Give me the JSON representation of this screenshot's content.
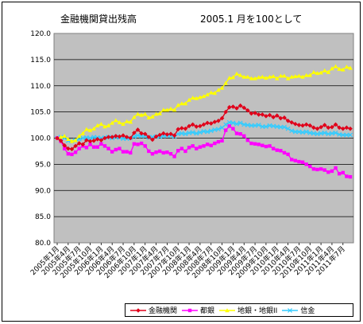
{
  "chart_data": {
    "type": "line",
    "title": "金融機関貸出残高",
    "subtitle": "2005.1 月を100として",
    "ylim": [
      80,
      120
    ],
    "yticks": [
      "80.0",
      "85.0",
      "90.0",
      "95.0",
      "100.0",
      "105.0",
      "110.0",
      "115.0",
      "120.0"
    ],
    "grid": true,
    "legend_position": "bottom",
    "x_tick_labels": [
      "2005年1月",
      "2005年4月",
      "2005年7月",
      "2005年10月",
      "2006年1月",
      "2006年4月",
      "2006年7月",
      "2006年10月",
      "2007年1月",
      "2007年4月",
      "2007年7月",
      "2007年10月",
      "2008年1月",
      "2008年4月",
      "2008年7月",
      "2008年10月",
      "2009年1月",
      "2009年4月",
      "2009年7月",
      "2009年10月",
      "2010年1月",
      "2010年4月",
      "2010年7月",
      "2010年10月",
      "2011年1月",
      "2011年4月",
      "2011年7月"
    ],
    "series": [
      {
        "name": "金融機関",
        "color": "#e0001a",
        "marker": "diamond",
        "values": [
          100.0,
          99.5,
          98.6,
          98.0,
          97.9,
          98.5,
          99.0,
          98.8,
          99.6,
          99.4,
          99.5,
          99.8,
          99.6,
          100.0,
          100.2,
          100.2,
          100.4,
          100.3,
          100.5,
          100.2,
          100.0,
          101.0,
          101.6,
          100.9,
          100.8,
          100.2,
          99.7,
          100.3,
          100.6,
          100.9,
          100.7,
          100.8,
          100.5,
          101.7,
          101.9,
          101.8,
          102.3,
          102.6,
          102.2,
          102.3,
          102.6,
          102.9,
          102.8,
          103.1,
          103.3,
          103.8,
          105.0,
          105.9,
          106.0,
          105.7,
          106.2,
          105.8,
          105.3,
          104.7,
          104.8,
          104.5,
          104.5,
          104.2,
          104.4,
          104.0,
          104.3,
          103.8,
          103.9,
          103.3,
          103.0,
          102.7,
          102.5,
          102.4,
          102.6,
          102.4,
          102.0,
          101.8,
          102.1,
          102.5,
          102.0,
          102.1,
          102.6,
          102.0,
          101.8,
          102.0,
          101.8
        ]
      },
      {
        "name": "都銀",
        "color": "#ff00ff",
        "marker": "square",
        "values": [
          100.0,
          99.4,
          98.0,
          97.0,
          96.9,
          97.3,
          98.0,
          98.5,
          98.2,
          98.8,
          98.3,
          98.3,
          98.9,
          98.5,
          98.0,
          97.4,
          97.8,
          98.0,
          97.4,
          97.4,
          97.2,
          98.9,
          98.8,
          99.0,
          98.5,
          97.5,
          97.0,
          97.3,
          97.5,
          97.2,
          97.3,
          97.0,
          96.5,
          97.6,
          98.0,
          97.5,
          98.2,
          98.5,
          98.0,
          98.3,
          98.5,
          98.8,
          98.6,
          99.0,
          99.3,
          99.5,
          101.5,
          102.3,
          101.8,
          100.9,
          100.8,
          100.4,
          99.6,
          99.0,
          98.9,
          98.8,
          98.6,
          98.4,
          98.5,
          98.0,
          97.7,
          97.6,
          97.2,
          96.9,
          95.9,
          95.7,
          95.5,
          95.4,
          95.0,
          94.6,
          94.1,
          94.0,
          94.1,
          93.9,
          93.5,
          93.7,
          94.3,
          93.2,
          93.4,
          92.7,
          92.6
        ]
      },
      {
        "name": "地銀・地銀II",
        "color": "#ffff00",
        "marker": "triangle",
        "values": [
          100.0,
          100.2,
          100.4,
          99.8,
          99.4,
          99.6,
          100.4,
          100.9,
          101.7,
          101.5,
          101.8,
          102.4,
          102.7,
          102.2,
          102.4,
          102.9,
          103.4,
          103.0,
          102.7,
          103.2,
          103.1,
          104.0,
          104.6,
          104.4,
          104.6,
          103.9,
          104.1,
          104.6,
          104.7,
          105.4,
          105.4,
          105.6,
          105.4,
          106.3,
          106.6,
          106.6,
          107.3,
          107.7,
          107.6,
          107.8,
          108.0,
          108.3,
          108.7,
          108.6,
          109.2,
          109.6,
          110.5,
          111.5,
          111.6,
          112.3,
          112.0,
          111.7,
          111.7,
          111.4,
          111.4,
          111.6,
          111.7,
          111.5,
          111.7,
          111.8,
          111.4,
          111.9,
          111.9,
          111.4,
          111.7,
          111.8,
          111.9,
          111.7,
          112.0,
          112.0,
          112.6,
          112.4,
          112.5,
          112.9,
          112.6,
          113.3,
          113.7,
          113.2,
          113.1,
          113.6,
          113.4
        ]
      },
      {
        "name": "信金",
        "color": "#33ccff",
        "marker": "cross",
        "values": [
          100.0,
          100.2,
          100.0,
          99.5,
          99.4,
          99.6,
          99.8,
          100.0,
          100.1,
          100.0,
          100.2,
          100.1,
          100.0,
          100.1,
          100.2,
          100.0,
          100.2,
          100.1,
          99.9,
          99.9,
          100.0,
          100.3,
          100.5,
          100.4,
          100.4,
          100.1,
          100.2,
          100.3,
          100.3,
          100.4,
          100.5,
          100.5,
          100.3,
          100.8,
          100.9,
          100.8,
          101.0,
          101.1,
          100.9,
          101.1,
          101.3,
          101.2,
          101.4,
          101.6,
          101.7,
          102.0,
          102.6,
          103.0,
          102.9,
          102.7,
          102.9,
          102.6,
          102.5,
          102.4,
          102.4,
          102.5,
          102.2,
          102.2,
          102.4,
          102.3,
          102.2,
          102.1,
          102.1,
          101.8,
          101.4,
          101.2,
          101.2,
          101.1,
          101.2,
          101.0,
          100.9,
          100.8,
          100.9,
          101.0,
          100.8,
          100.9,
          101.0,
          100.7,
          100.6,
          100.6,
          100.6
        ]
      }
    ]
  }
}
